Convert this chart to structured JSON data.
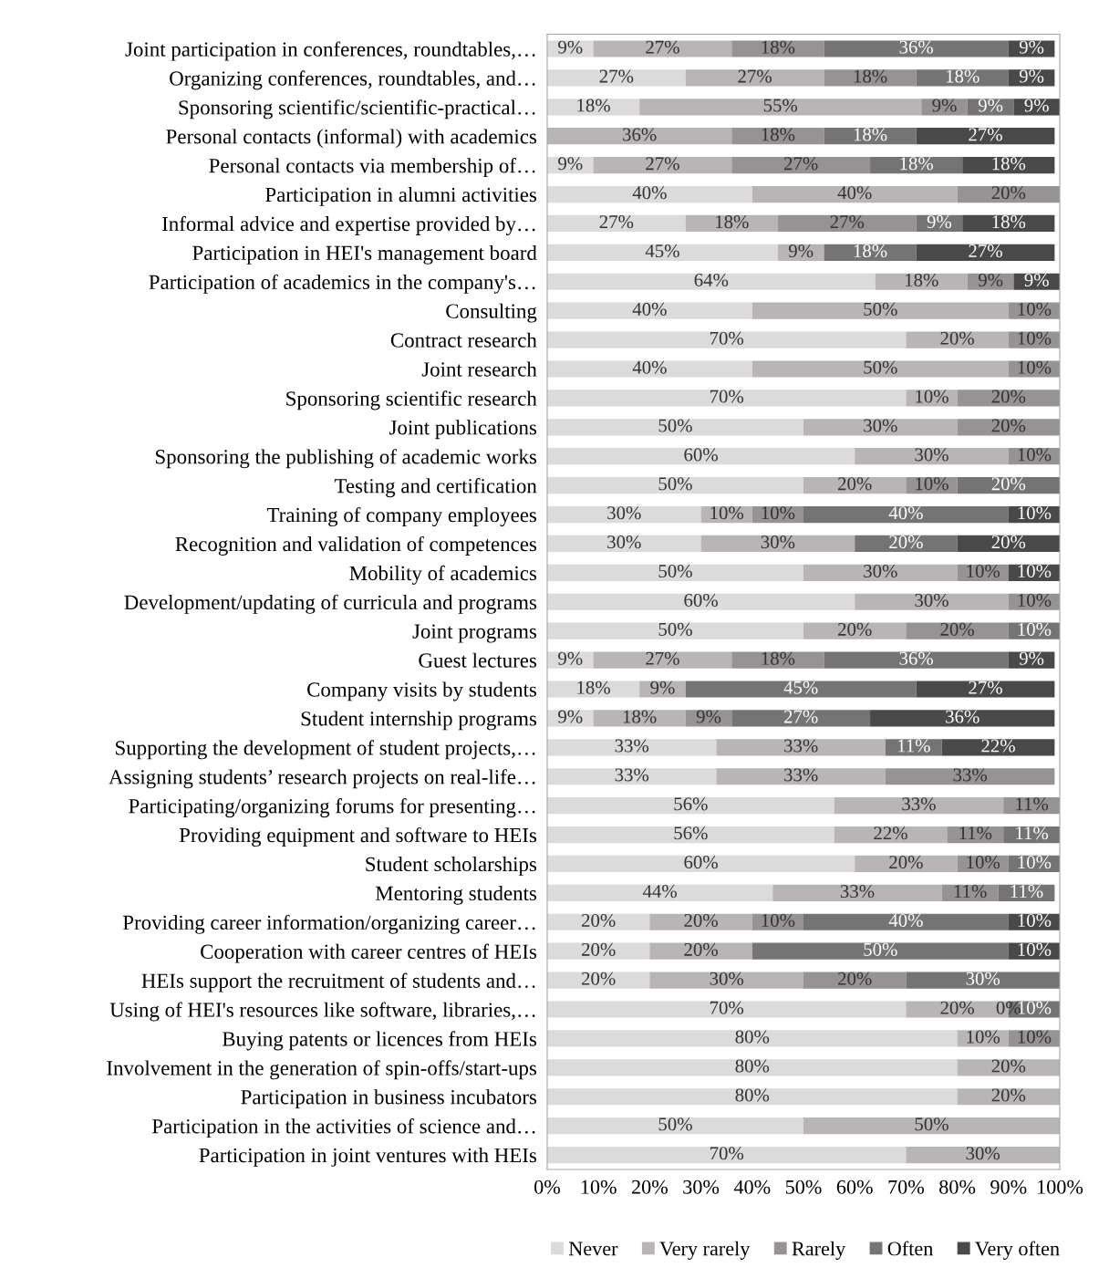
{
  "chart_data": {
    "type": "bar",
    "orientation": "horizontal",
    "stacked": true,
    "legend": "bottom",
    "grid": false,
    "categories": [
      "Joint participation in conferences, roundtables,…",
      "Organizing conferences, roundtables, and…",
      "Sponsoring scientific/scientific-practical…",
      "Personal contacts (informal) with academics",
      "Personal contacts via membership of…",
      "Participation in alumni activities",
      "Informal advice and expertise provided by…",
      "Participation in HEI's management board",
      "Participation of academics in the company's…",
      "Consulting",
      "Contract research",
      "Joint research",
      "Sponsoring scientific research",
      "Joint publications",
      "Sponsoring the publishing of academic works",
      "Testing and certification",
      "Training of company employees",
      "Recognition and validation of competences",
      "Mobility of academics",
      "Development/updating of curricula and programs",
      "Joint programs",
      "Guest lectures",
      "Company visits by students",
      "Student internship programs",
      "Supporting the development of student projects,…",
      "Assigning students’ research projects on real-life…",
      "Participating/organizing forums for presenting…",
      "Providing equipment and software to HEIs",
      "Student scholarships",
      "Mentoring students",
      "Providing career information/organizing career…",
      "Cooperation with career centres of HEIs",
      "HEIs support the recruitment of students and…",
      "Using of HEI's resources like software, libraries,…",
      "Buying patents or licences from HEIs",
      "Involvement in the generation of spin-offs/start-ups",
      "Participation in business incubators",
      "Participation in the activities of science and…",
      "Participation in joint ventures with HEIs"
    ],
    "xlim": [
      0,
      100
    ],
    "xticks": [
      {
        "value": 0,
        "label": "0%"
      },
      {
        "value": 10,
        "label": "10%"
      },
      {
        "value": 20,
        "label": "20%"
      },
      {
        "value": 30,
        "label": "30%"
      },
      {
        "value": 40,
        "label": "40%"
      },
      {
        "value": 50,
        "label": "50%"
      },
      {
        "value": 60,
        "label": "60%"
      },
      {
        "value": 70,
        "label": "70%"
      },
      {
        "value": 80,
        "label": "80%"
      },
      {
        "value": 90,
        "label": "90%"
      },
      {
        "value": 100,
        "label": "100%"
      }
    ],
    "series": [
      {
        "name": "Never",
        "color": "#dcdadb",
        "values": [
          9,
          27,
          18,
          0,
          9,
          40,
          27,
          45,
          64,
          40,
          70,
          40,
          70,
          50,
          60,
          50,
          30,
          30,
          50,
          60,
          50,
          9,
          18,
          9,
          33,
          33,
          56,
          56,
          60,
          44,
          20,
          20,
          20,
          70,
          80,
          80,
          80,
          50,
          70
        ],
        "value_labels": [
          "9%",
          "27%",
          "18%",
          null,
          "9%",
          "40%",
          "27%",
          "45%",
          "64%",
          "40%",
          "70%",
          "40%",
          "70%",
          "50%",
          "60%",
          "50%",
          "30%",
          "30%",
          "50%",
          "60%",
          "50%",
          "9%",
          "18%",
          "9%",
          "33%",
          "33%",
          "56%",
          "56%",
          "60%",
          "44%",
          "20%",
          "20%",
          "20%",
          "70%",
          "80%",
          "80%",
          "80%",
          "50%",
          "70%"
        ]
      },
      {
        "name": "Very rarely",
        "color": "#b8b5b4",
        "values": [
          27,
          27,
          55,
          36,
          27,
          40,
          18,
          9,
          18,
          50,
          20,
          50,
          10,
          30,
          30,
          20,
          10,
          30,
          30,
          30,
          20,
          27,
          9,
          18,
          33,
          33,
          33,
          22,
          20,
          33,
          20,
          20,
          30,
          20,
          10,
          20,
          20,
          50,
          30
        ],
        "value_labels": [
          "27%",
          "27%",
          "55%",
          "36%",
          "27%",
          "40%",
          "18%",
          "9%",
          "18%",
          "50%",
          "20%",
          "50%",
          "10%",
          "30%",
          "30%",
          "20%",
          "10%",
          "30%",
          "30%",
          "30%",
          "20%",
          "27%",
          "9%",
          "18%",
          "33%",
          "33%",
          "33%",
          "22%",
          "20%",
          "33%",
          "20%",
          "20%",
          "30%",
          "20%",
          "10%",
          "20%",
          "20%",
          "50%",
          "30%"
        ]
      },
      {
        "name": "Rarely",
        "color": "#969392",
        "values": [
          18,
          18,
          9,
          18,
          27,
          20,
          27,
          0,
          9,
          10,
          10,
          10,
          20,
          20,
          10,
          10,
          10,
          0,
          10,
          10,
          20,
          18,
          0,
          9,
          0,
          33,
          11,
          11,
          10,
          11,
          10,
          0,
          20,
          0,
          10,
          0,
          0,
          0,
          0
        ],
        "value_labels": [
          "18%",
          "18%",
          "9%",
          "18%",
          "27%",
          "20%",
          "27%",
          null,
          "9%",
          "10%",
          "10%",
          "10%",
          "20%",
          "20%",
          "10%",
          "10%",
          "10%",
          null,
          "10%",
          "10%",
          "20%",
          "18%",
          null,
          "9%",
          null,
          "33%",
          "11%",
          "11%",
          "10%",
          "11%",
          "10%",
          null,
          "20%",
          "0%",
          "10%",
          null,
          null,
          null,
          null
        ]
      },
      {
        "name": "Often",
        "color": "#767374",
        "values": [
          36,
          18,
          9,
          18,
          18,
          0,
          9,
          18,
          0,
          0,
          0,
          0,
          0,
          0,
          0,
          20,
          40,
          20,
          0,
          0,
          10,
          36,
          45,
          27,
          11,
          0,
          0,
          11,
          10,
          11,
          40,
          50,
          30,
          10,
          0,
          0,
          0,
          0,
          0
        ],
        "value_labels": [
          "36%",
          "18%",
          "9%",
          "18%",
          "18%",
          null,
          "9%",
          "18%",
          null,
          null,
          null,
          null,
          null,
          null,
          null,
          "20%",
          "40%",
          "20%",
          null,
          null,
          "10%",
          "36%",
          "45%",
          "27%",
          "11%",
          null,
          null,
          "11%",
          "10%",
          "11%",
          "40%",
          "50%",
          "30%",
          "10%",
          null,
          null,
          null,
          null,
          null
        ]
      },
      {
        "name": "Very often",
        "color": "#4a4849",
        "values": [
          9,
          9,
          9,
          27,
          18,
          0,
          18,
          27,
          9,
          0,
          0,
          0,
          0,
          0,
          0,
          0,
          10,
          20,
          10,
          0,
          0,
          9,
          27,
          36,
          22,
          0,
          0,
          0,
          0,
          0,
          10,
          10,
          0,
          0,
          0,
          0,
          0,
          0,
          0
        ],
        "value_labels": [
          "9%",
          "9%",
          "9%",
          "27%",
          "18%",
          null,
          "18%",
          "27%",
          "9%",
          null,
          null,
          null,
          null,
          null,
          null,
          null,
          "10%",
          "20%",
          "10%",
          null,
          null,
          "9%",
          "27%",
          "36%",
          "22%",
          null,
          null,
          null,
          null,
          null,
          "10%",
          "10%",
          null,
          null,
          null,
          null,
          null,
          null,
          null
        ]
      }
    ]
  }
}
